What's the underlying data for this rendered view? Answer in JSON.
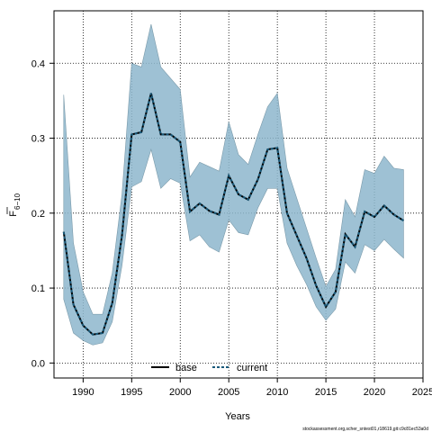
{
  "chart_data": {
    "type": "line",
    "title": "",
    "xlabel": "Years",
    "ylabel_main": "F",
    "ylabel_sub": "6−10",
    "xlim": [
      1987,
      2025
    ],
    "ylim": [
      -0.02,
      0.47
    ],
    "xticks": [
      "1990",
      "1995",
      "2000",
      "2005",
      "2010",
      "2015",
      "2020",
      "2025"
    ],
    "yticks": [
      "0.0",
      "0.1",
      "0.2",
      "0.3",
      "0.4"
    ],
    "grid": true,
    "legend_position": "bottom-center",
    "x": [
      1988,
      1989,
      1990,
      1991,
      1992,
      1993,
      1994,
      1995,
      1996,
      1997,
      1998,
      1999,
      2000,
      2001,
      2002,
      2003,
      2004,
      2005,
      2006,
      2007,
      2008,
      2009,
      2010,
      2011,
      2012,
      2013,
      2014,
      2015,
      2016,
      2017,
      2018,
      2019,
      2020,
      2021,
      2022,
      2023
    ],
    "series": [
      {
        "name": "base",
        "values": [
          0.175,
          0.078,
          0.05,
          0.038,
          0.04,
          0.08,
          0.17,
          0.305,
          0.308,
          0.36,
          0.305,
          0.305,
          0.295,
          0.202,
          0.213,
          0.203,
          0.198,
          0.25,
          0.225,
          0.218,
          0.245,
          0.285,
          0.287,
          0.2,
          0.17,
          0.14,
          0.103,
          0.075,
          0.095,
          0.172,
          0.155,
          0.202,
          0.195,
          0.21,
          0.198,
          0.19
        ],
        "color": "#000000"
      },
      {
        "name": "current",
        "values": [
          0.175,
          0.078,
          0.05,
          0.038,
          0.04,
          0.08,
          0.17,
          0.305,
          0.308,
          0.36,
          0.305,
          0.305,
          0.295,
          0.202,
          0.213,
          0.203,
          0.198,
          0.25,
          0.225,
          0.218,
          0.245,
          0.285,
          0.287,
          0.2,
          0.17,
          0.14,
          0.103,
          0.075,
          0.095,
          0.172,
          0.155,
          0.202,
          0.195,
          0.21,
          0.198,
          0.19
        ],
        "color": "#1a5a7a"
      }
    ],
    "band": {
      "upper": [
        0.358,
        0.16,
        0.095,
        0.065,
        0.065,
        0.12,
        0.225,
        0.4,
        0.395,
        0.452,
        0.395,
        0.38,
        0.365,
        0.248,
        0.268,
        0.262,
        0.256,
        0.322,
        0.278,
        0.265,
        0.305,
        0.342,
        0.36,
        0.26,
        0.22,
        0.18,
        0.14,
        0.102,
        0.125,
        0.218,
        0.195,
        0.258,
        0.253,
        0.276,
        0.26,
        0.258
      ],
      "lower": [
        0.085,
        0.04,
        0.03,
        0.024,
        0.027,
        0.055,
        0.13,
        0.235,
        0.242,
        0.285,
        0.233,
        0.246,
        0.24,
        0.163,
        0.171,
        0.155,
        0.148,
        0.191,
        0.174,
        0.171,
        0.207,
        0.233,
        0.233,
        0.16,
        0.13,
        0.105,
        0.075,
        0.057,
        0.072,
        0.135,
        0.12,
        0.158,
        0.15,
        0.165,
        0.152,
        0.14
      ],
      "color": "#8db6cc"
    }
  },
  "footer": "stockassessment.org,scher_sntest01,r18619,git:c9c81ec53a0d"
}
